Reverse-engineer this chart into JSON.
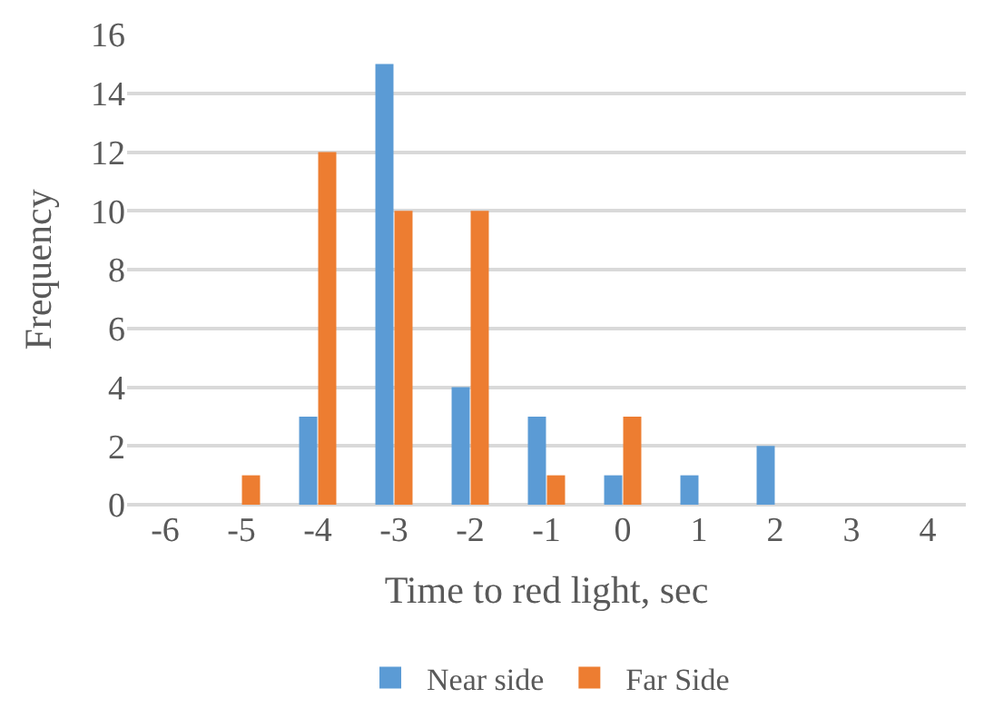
{
  "chart_data": {
    "type": "bar",
    "xlabel": "Time to red light, sec",
    "ylabel": "Frequency",
    "categories": [
      "-6",
      "-5",
      "-4",
      "-3",
      "-2",
      "-1",
      "0",
      "1",
      "2",
      "3",
      "4"
    ],
    "series": [
      {
        "name": "Near side",
        "color": "#5b9bd5",
        "values": [
          0,
          0,
          3,
          15,
          4,
          3,
          1,
          1,
          2,
          0,
          0
        ]
      },
      {
        "name": "Far Side",
        "color": "#ed7d31",
        "values": [
          0,
          1,
          12,
          10,
          10,
          1,
          3,
          0,
          0,
          0,
          0
        ]
      }
    ],
    "ylim": [
      0,
      16
    ],
    "yticks": [
      0,
      2,
      4,
      6,
      8,
      10,
      12,
      14,
      16
    ],
    "grid": "y",
    "legend": "bottom"
  }
}
